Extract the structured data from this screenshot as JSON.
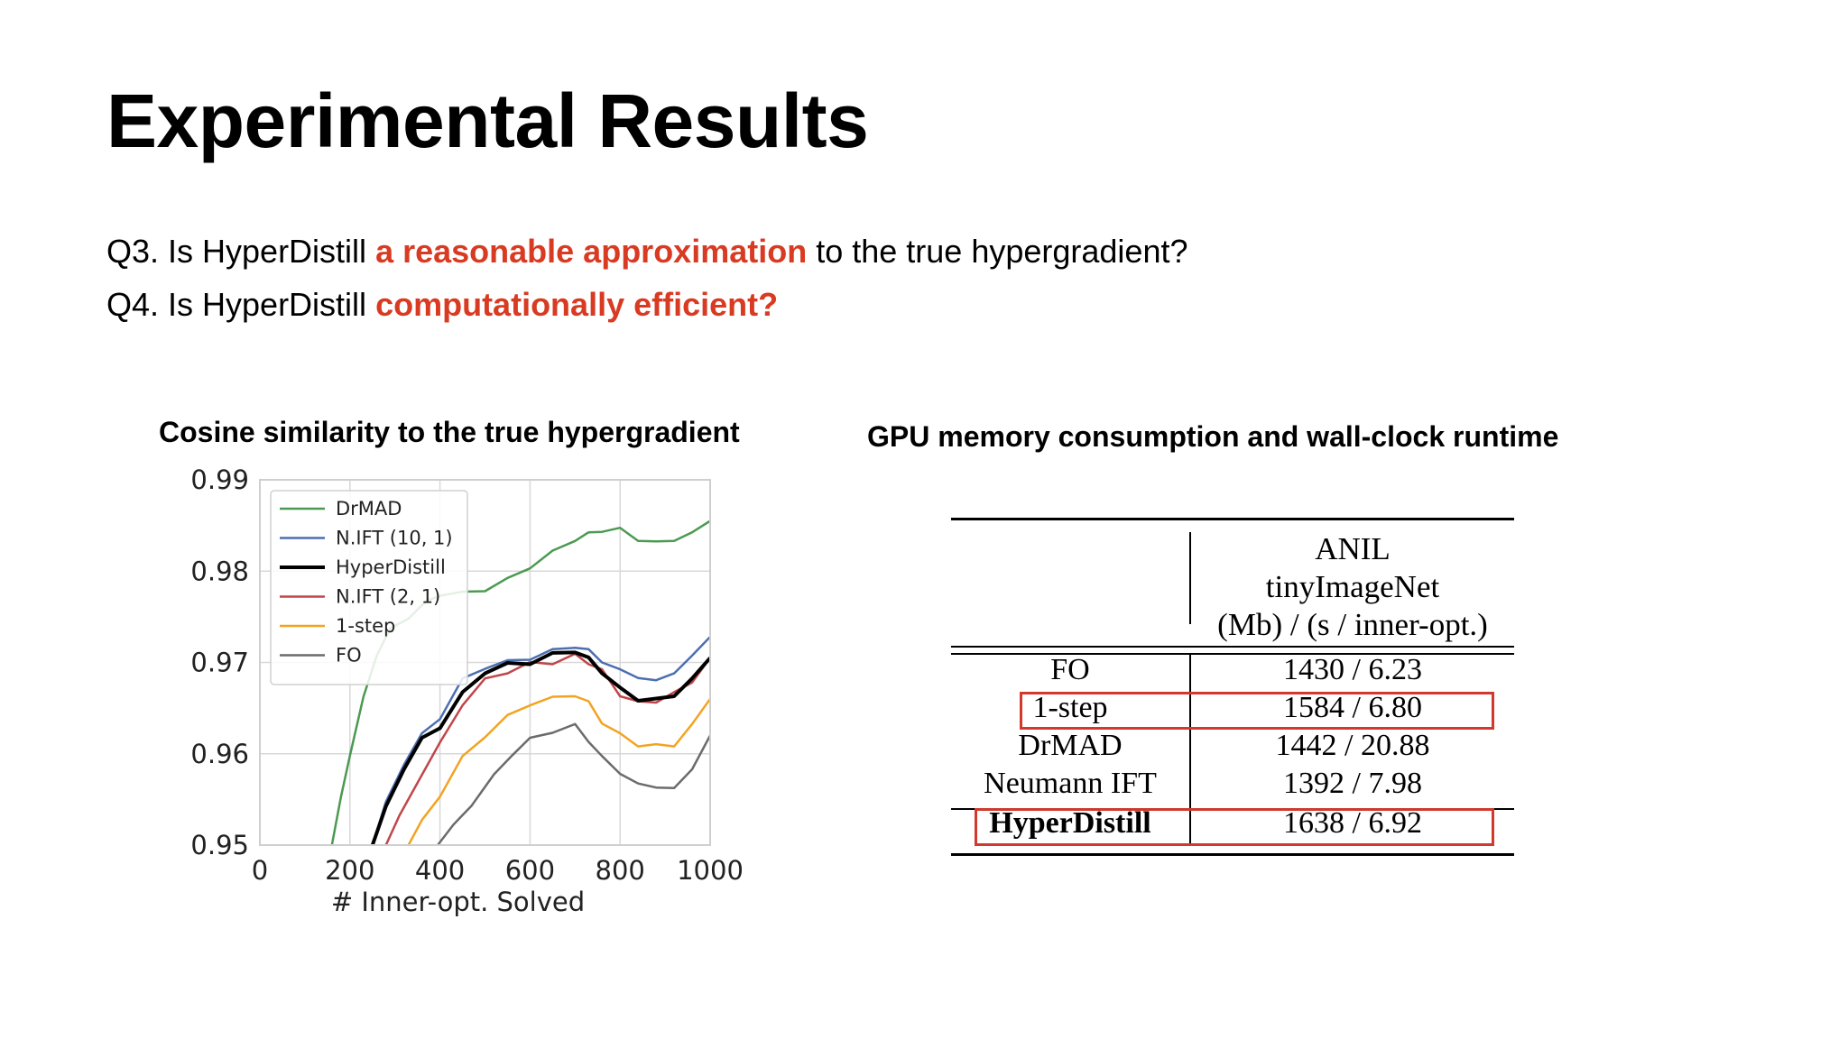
{
  "slide": {
    "title": "Experimental Results",
    "q3": {
      "prefix": "Q3. Is HyperDistill ",
      "highlight": "a reasonable approximation",
      "suffix": " to the true hypergradient?"
    },
    "q4": {
      "prefix": "Q4. Is HyperDistill ",
      "highlight": "computationally efficient?"
    },
    "chart_heading": "Cosine similarity to the true hypergradient",
    "table_heading": "GPU memory consumption and wall-clock runtime",
    "colors": {
      "highlight": "#d83a22",
      "box": "#d0392b"
    }
  },
  "chart_data": {
    "type": "line",
    "title": "",
    "xlabel": "# Inner-opt. Solved",
    "ylabel": "",
    "xlim": [
      0,
      1000
    ],
    "ylim": [
      0.95,
      0.99
    ],
    "xticks": [
      0,
      200,
      400,
      600,
      800,
      1000
    ],
    "xtick_labels": [
      "0",
      "200",
      "400",
      "600",
      "800",
      "1000"
    ],
    "yticks": [
      0.95,
      0.96,
      0.97,
      0.98,
      0.99
    ],
    "ytick_labels": [
      "0.95",
      "0.96",
      "0.97",
      "0.98",
      "0.99"
    ],
    "grid": true,
    "legend_position": "top-left",
    "series": [
      {
        "name": "DrMAD",
        "color": "#4c9a51",
        "width": 2.5,
        "x": [
          160,
          180,
          200,
          230,
          260,
          290,
          330,
          370,
          400,
          450,
          500,
          550,
          600,
          650,
          700,
          730,
          760,
          800,
          840,
          880,
          920,
          960,
          1000
        ],
        "y": [
          0.95,
          0.955,
          0.96,
          0.966,
          0.971,
          0.9735,
          0.975,
          0.9765,
          0.9775,
          0.9775,
          0.978,
          0.979,
          0.9805,
          0.982,
          0.9835,
          0.984,
          0.9845,
          0.9845,
          0.9835,
          0.983,
          0.9835,
          0.984,
          0.9855
        ]
      },
      {
        "name": "N.IFT (10, 1)",
        "color": "#4c6fb0",
        "width": 2.5,
        "x": [
          250,
          280,
          320,
          360,
          400,
          450,
          500,
          550,
          600,
          650,
          700,
          730,
          760,
          800,
          840,
          880,
          920,
          960,
          1000
        ],
        "y": [
          0.95,
          0.9545,
          0.959,
          0.962,
          0.964,
          0.968,
          0.9695,
          0.97,
          0.9705,
          0.9712,
          0.9718,
          0.9712,
          0.9702,
          0.969,
          0.9685,
          0.9678,
          0.969,
          0.9705,
          0.9728
        ]
      },
      {
        "name": "HyperDistill",
        "color": "#000000",
        "width": 4,
        "x": [
          250,
          280,
          320,
          360,
          400,
          450,
          500,
          550,
          600,
          650,
          700,
          730,
          760,
          800,
          840,
          880,
          920,
          960,
          1000
        ],
        "y": [
          0.95,
          0.954,
          0.9585,
          0.9615,
          0.963,
          0.9665,
          0.969,
          0.9697,
          0.97,
          0.9708,
          0.9713,
          0.9703,
          0.969,
          0.967,
          0.966,
          0.9658,
          0.9665,
          0.968,
          0.9705
        ]
      },
      {
        "name": "N.IFT (2, 1)",
        "color": "#c0464b",
        "width": 2.5,
        "x": [
          280,
          310,
          350,
          400,
          450,
          500,
          550,
          600,
          650,
          700,
          730,
          760,
          800,
          840,
          880,
          920,
          960,
          1000
        ],
        "y": [
          0.95,
          0.953,
          0.957,
          0.961,
          0.9655,
          0.968,
          0.969,
          0.9698,
          0.97,
          0.9707,
          0.97,
          0.969,
          0.9665,
          0.9655,
          0.9658,
          0.9665,
          0.968,
          0.9705
        ]
      },
      {
        "name": "1-step",
        "color": "#f2a421",
        "width": 2.5,
        "x": [
          330,
          360,
          400,
          450,
          500,
          550,
          600,
          650,
          700,
          730,
          760,
          800,
          840,
          880,
          920,
          960,
          1000
        ],
        "y": [
          0.95,
          0.9525,
          0.9555,
          0.9595,
          0.962,
          0.964,
          0.9655,
          0.966,
          0.9665,
          0.9655,
          0.9635,
          0.962,
          0.961,
          0.9608,
          0.961,
          0.963,
          0.966
        ]
      },
      {
        "name": "FO",
        "color": "#6b6b6b",
        "width": 2.5,
        "x": [
          395,
          430,
          470,
          520,
          560,
          600,
          650,
          700,
          730,
          760,
          800,
          840,
          880,
          920,
          960,
          1000
        ],
        "y": [
          0.95,
          0.952,
          0.9545,
          0.9575,
          0.96,
          0.9615,
          0.9625,
          0.963,
          0.9615,
          0.9595,
          0.958,
          0.9565,
          0.9565,
          0.956,
          0.9585,
          0.962
        ]
      }
    ]
  },
  "table": {
    "header_lines": [
      "ANIL",
      "tinyImageNet",
      "(Mb) / (s / inner-opt.)"
    ],
    "rows": [
      {
        "method": "FO",
        "value": "1430 / 6.23"
      },
      {
        "method": "1-step",
        "value": "1584 / 6.80"
      },
      {
        "method": "DrMAD",
        "value": "1442 / 20.88"
      },
      {
        "method": "Neumann IFT",
        "value": "1392 / 7.98"
      },
      {
        "method": "HyperDistill",
        "value": "1638 / 6.92"
      }
    ]
  }
}
